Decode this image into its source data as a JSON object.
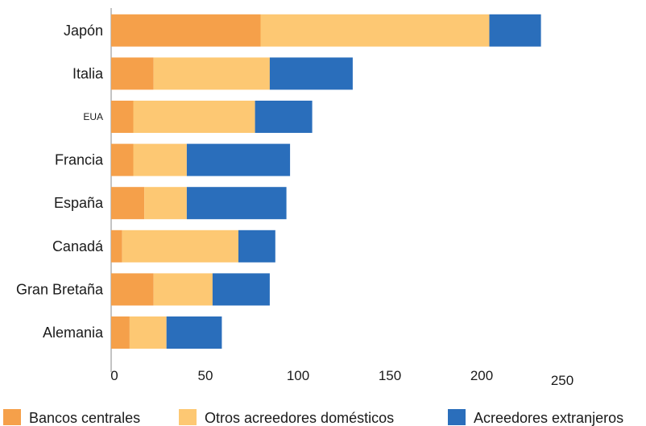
{
  "chart_data": {
    "type": "bar",
    "orientation": "horizontal",
    "stacked": true,
    "categories": [
      "Japón",
      "Italia",
      "EUA",
      "Francia",
      "España",
      "Canadá",
      "Gran Bretaña",
      "Alemania"
    ],
    "series": [
      {
        "name": "Bancos centrales",
        "color": "#f5a04a",
        "values": [
          81,
          23,
          12,
          12,
          18,
          6,
          23,
          10
        ]
      },
      {
        "name": "Otros acreedores domésticos",
        "color": "#fdc873",
        "values": [
          124,
          63,
          66,
          29,
          23,
          63,
          32,
          20
        ]
      },
      {
        "name": "Acreedores extranjeros",
        "color": "#2a6ebb",
        "values": [
          28,
          45,
          31,
          56,
          54,
          20,
          31,
          30
        ]
      }
    ],
    "x_ticks": [
      "0",
      "50",
      "100",
      "150",
      "200",
      "250"
    ],
    "xlim": [
      0,
      250
    ],
    "grid": false,
    "legend_position": "bottom"
  }
}
